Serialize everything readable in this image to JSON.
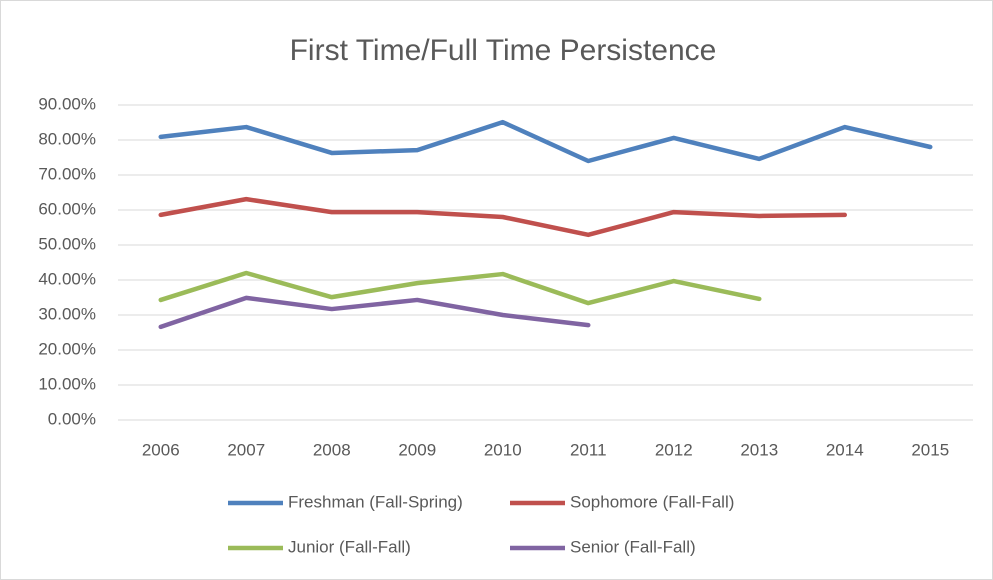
{
  "chart_data": {
    "type": "line",
    "title": "First Time/Full Time Persistence",
    "categories": [
      "2006",
      "2007",
      "2008",
      "2009",
      "2010",
      "2011",
      "2012",
      "2013",
      "2014",
      "2015"
    ],
    "series": [
      {
        "name": "Freshman (Fall-Spring)",
        "color": "#4f81bd",
        "values": [
          80.9,
          83.7,
          76.3,
          77.1,
          85.1,
          74.0,
          80.6,
          74.6,
          83.7,
          78.0
        ]
      },
      {
        "name": "Sophomore (Fall-Fall)",
        "color": "#c0504d",
        "values": [
          58.6,
          63.1,
          59.4,
          59.4,
          58.0,
          52.9,
          59.4,
          58.3,
          58.6,
          null
        ]
      },
      {
        "name": "Junior (Fall-Fall)",
        "color": "#9bbb59",
        "values": [
          34.3,
          42.0,
          35.1,
          39.1,
          41.7,
          33.4,
          39.7,
          34.6,
          null,
          null
        ]
      },
      {
        "name": "Senior (Fall-Fall)",
        "color": "#8064a2",
        "values": [
          26.6,
          34.9,
          31.7,
          34.3,
          30.0,
          27.1,
          null,
          null,
          null,
          null
        ]
      }
    ],
    "ylim": [
      0,
      90
    ],
    "yticks": [
      {
        "value": 0,
        "label": "0.00%"
      },
      {
        "value": 10,
        "label": "10.00%"
      },
      {
        "value": 20,
        "label": "20.00%"
      },
      {
        "value": 30,
        "label": "30.00%"
      },
      {
        "value": 40,
        "label": "40.00%"
      },
      {
        "value": 50,
        "label": "50.00%"
      },
      {
        "value": 60,
        "label": "60.00%"
      },
      {
        "value": 70,
        "label": "70.00%"
      },
      {
        "value": 80,
        "label": "80.00%"
      },
      {
        "value": 90,
        "label": "90.00%"
      }
    ],
    "grid": true,
    "legend": "bottom"
  }
}
